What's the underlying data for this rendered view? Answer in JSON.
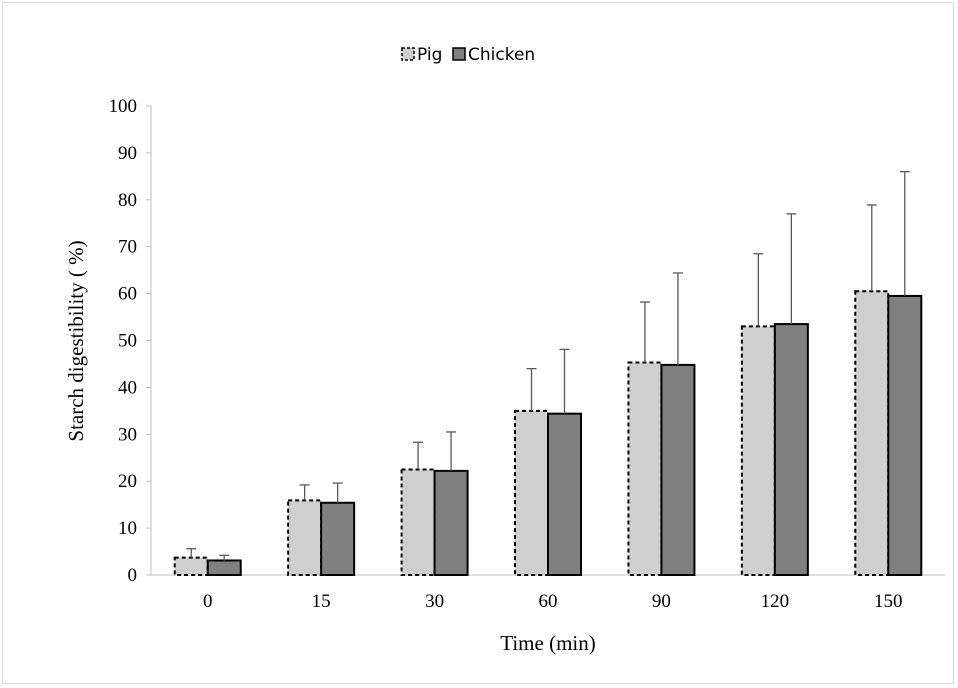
{
  "chart_data": {
    "type": "bar",
    "title": "",
    "xlabel": "Time (min)",
    "ylabel": "Starch digestibility ( %)",
    "categories": [
      "0",
      "15",
      "30",
      "60",
      "90",
      "120",
      "150"
    ],
    "ylim": [
      0,
      100
    ],
    "yticks": [
      0,
      10,
      20,
      30,
      40,
      50,
      60,
      70,
      80,
      90,
      100
    ],
    "grid": false,
    "legend_position": "top-center",
    "series": [
      {
        "name": "Pig",
        "values": [
          3.7,
          15.9,
          22.5,
          35.0,
          45.3,
          53.0,
          60.5
        ],
        "error": [
          1.9,
          3.3,
          5.8,
          9.0,
          12.9,
          15.5,
          18.4
        ],
        "fill": "#d0cfd0",
        "border_style": "dashed"
      },
      {
        "name": "Chicken",
        "values": [
          3.1,
          15.4,
          22.2,
          34.4,
          44.8,
          53.5,
          59.5
        ],
        "error": [
          1.1,
          4.2,
          8.3,
          13.7,
          19.6,
          23.5,
          26.5
        ],
        "fill": "#808080",
        "border_style": "solid"
      }
    ]
  }
}
